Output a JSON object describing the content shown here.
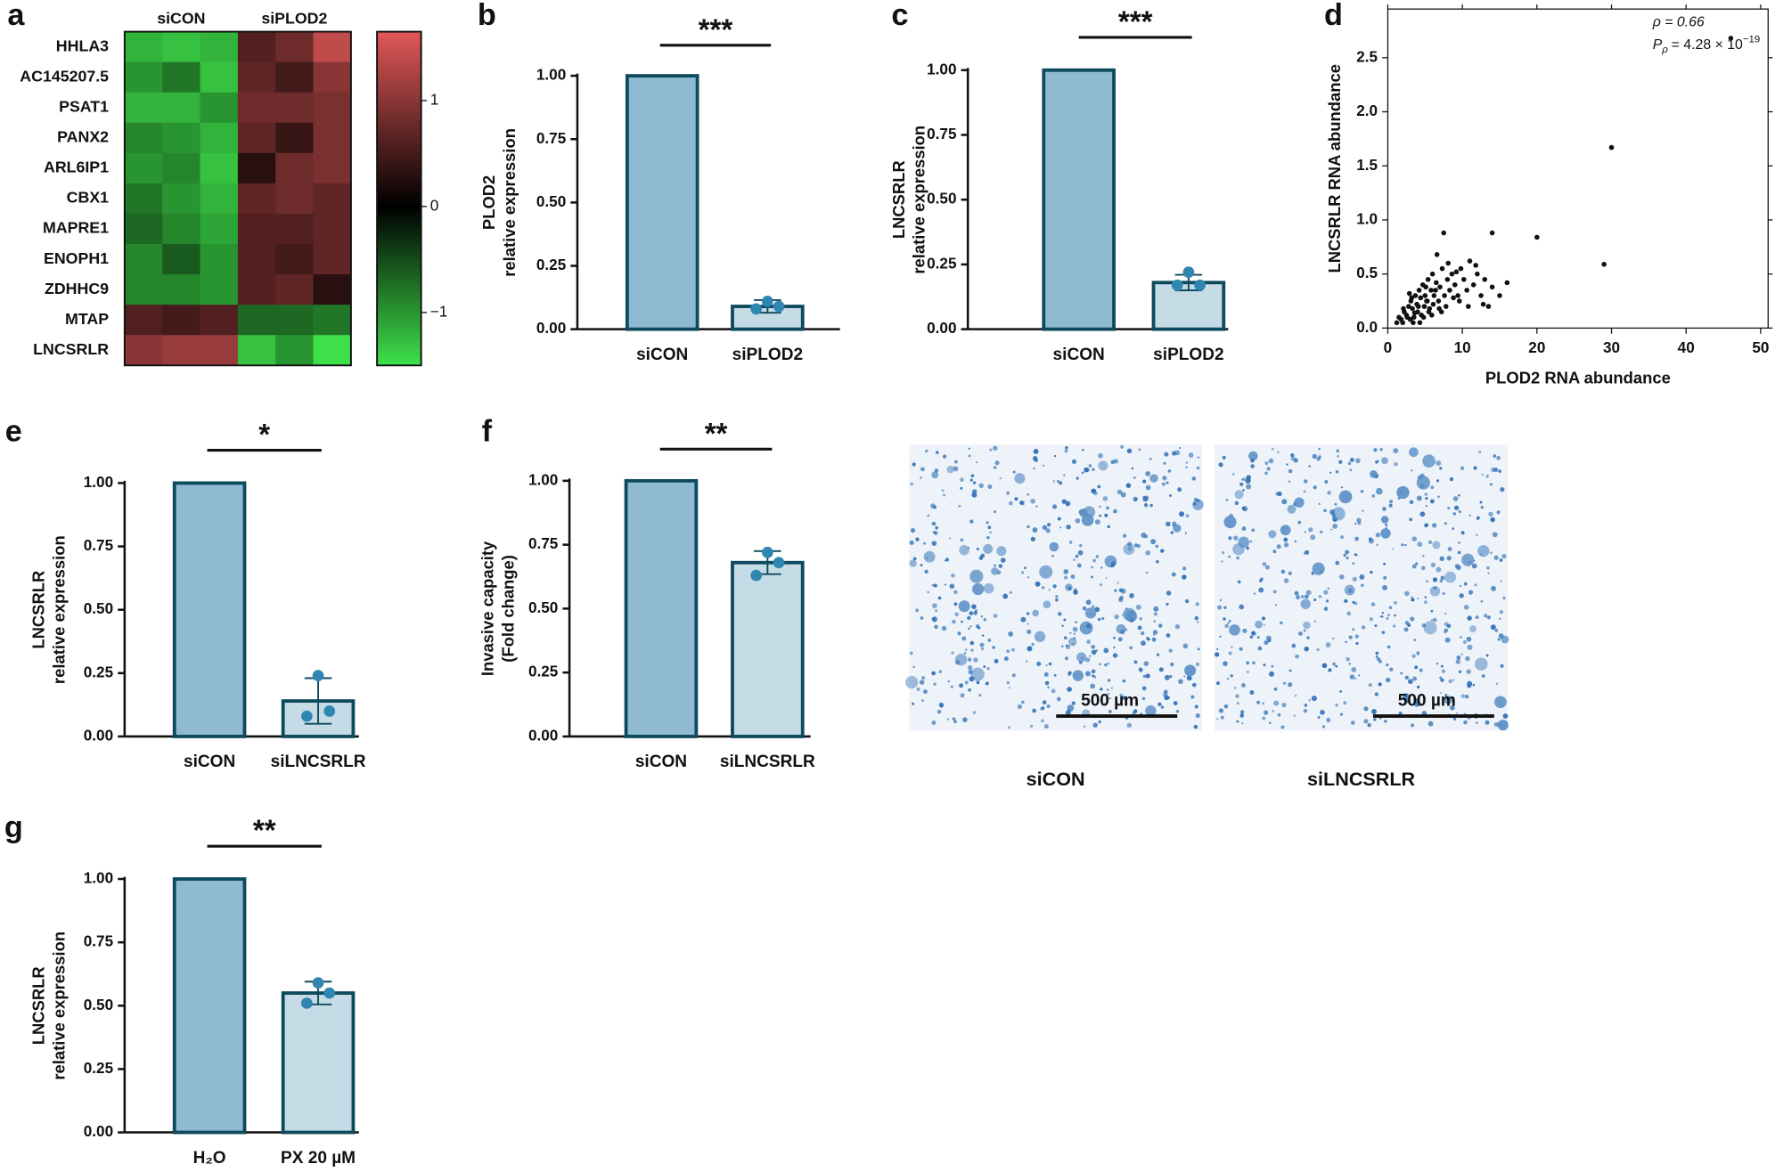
{
  "chart_data": [
    {
      "type": "heatmap",
      "panel": "a",
      "column_groups": [
        "siCON",
        "siPLOD2"
      ],
      "row_labels": [
        "HHLA3",
        "AC145207.5",
        "PSAT1",
        "PANX2",
        "ARL6IP1",
        "CBX1",
        "MAPRE1",
        "ENOPH1",
        "ZDHHC9",
        "MTAP",
        "LNCSRLR"
      ],
      "values": [
        [
          -1.2,
          -1.3,
          -1.2,
          0.6,
          0.8,
          1.4
        ],
        [
          -1.0,
          -0.8,
          -1.3,
          0.7,
          0.5,
          1.0
        ],
        [
          -1.2,
          -1.2,
          -1.0,
          0.8,
          0.8,
          0.9
        ],
        [
          -0.9,
          -1.0,
          -1.2,
          0.7,
          0.4,
          0.9
        ],
        [
          -1.0,
          -0.9,
          -1.3,
          0.3,
          0.8,
          0.9
        ],
        [
          -0.8,
          -1.0,
          -1.2,
          0.7,
          0.8,
          0.7
        ],
        [
          -0.7,
          -0.9,
          -1.1,
          0.6,
          0.6,
          0.7
        ],
        [
          -0.9,
          -0.6,
          -1.0,
          0.6,
          0.5,
          0.7
        ],
        [
          -0.9,
          -0.9,
          -1.0,
          0.6,
          0.7,
          0.3
        ],
        [
          0.6,
          0.5,
          0.6,
          -0.7,
          -0.7,
          -0.8
        ],
        [
          1.0,
          1.1,
          1.1,
          -1.3,
          -1.0,
          -1.5
        ]
      ],
      "clim": [
        -1.5,
        1.65
      ],
      "colorbar_ticks": [
        1,
        0,
        {
          "value": -1,
          "label": "−1"
        }
      ],
      "colors": {
        "low": "#3ee04a",
        "mid": "#000000",
        "high": "#e25858"
      }
    },
    {
      "type": "bar",
      "panel": "b",
      "ylabel": [
        "PLOD2",
        "relative expression"
      ],
      "categories": [
        "siCON",
        "siPLOD2"
      ],
      "values": [
        1.0,
        0.09
      ],
      "errors": [
        null,
        0.025
      ],
      "points": [
        null,
        [
          0.11,
          0.08,
          0.09
        ]
      ],
      "significance": "***",
      "colors": [
        "#8fbad2",
        "#c5dce7"
      ],
      "edge_color": "#0d4a5d",
      "point_color": "#2f86b0",
      "ylim": [
        0,
        1
      ],
      "yticks": [
        {
          "value": 0,
          "label": "0.00"
        },
        0.25,
        {
          "value": 0.5,
          "label": "0.50"
        },
        0.75,
        {
          "value": 1,
          "label": "1.00"
        }
      ]
    },
    {
      "type": "bar",
      "panel": "c",
      "ylabel": [
        "LNCSRLR",
        "relative expression"
      ],
      "categories": [
        "siCON",
        "siPLOD2"
      ],
      "values": [
        1.0,
        0.18
      ],
      "errors": [
        null,
        0.03
      ],
      "points": [
        null,
        [
          0.22,
          0.17,
          0.17
        ]
      ],
      "significance": "***",
      "colors": [
        "#8fbad2",
        "#c5dce7"
      ],
      "edge_color": "#0d4a5d",
      "point_color": "#2f86b0",
      "ylim": [
        0,
        1
      ],
      "yticks": [
        {
          "value": 0,
          "label": "0.00"
        },
        0.25,
        {
          "value": 0.5,
          "label": "0.50"
        },
        0.75,
        {
          "value": 1,
          "label": "1.00"
        }
      ]
    },
    {
      "type": "scatter",
      "panel": "d",
      "xlabel": "PLOD2 RNA abundance",
      "ylabel": "LNCSRLR RNA abundance",
      "annotation": {
        "rho": "ρ = 0.66",
        "p_symbol": "P",
        "p_subscript": "ρ",
        "p_value": "= 4.28 × 10",
        "p_exponent": "−19"
      },
      "color": "#111111",
      "x": [
        1.5,
        2,
        2.2,
        2.5,
        2.8,
        3,
        3.1,
        3.3,
        3.5,
        3.7,
        3.9,
        4,
        4.2,
        4.4,
        4.5,
        4.7,
        4.9,
        5,
        5.2,
        5.4,
        5.6,
        5.8,
        6,
        6.2,
        6.5,
        6.8,
        7,
        7.3,
        7.6,
        8,
        8.3,
        8.6,
        9,
        9.4,
        9.8,
        10.2,
        10.6,
        11,
        11.5,
        12,
        12.5,
        13,
        13.5,
        14,
        15,
        16,
        1.8,
        2.6,
        3.4,
        4.1,
        4.8,
        5.5,
        6.1,
        6.9,
        7.8,
        8.8,
        9.6,
        10.8,
        2.1,
        3.2,
        4.3,
        5.1,
        5.9,
        6.6,
        7.2,
        8.1,
        9.2,
        11.8,
        12.8,
        7.5,
        14,
        20,
        29,
        30,
        46,
        1.2,
        2.9,
        3.6,
        5.3,
        6.4
      ],
      "y": [
        0.1,
        0.05,
        0.15,
        0.12,
        0.2,
        0.08,
        0.25,
        0.18,
        0.1,
        0.3,
        0.22,
        0.15,
        0.35,
        0.28,
        0.12,
        0.4,
        0.2,
        0.3,
        0.25,
        0.45,
        0.18,
        0.35,
        0.5,
        0.3,
        0.42,
        0.25,
        0.38,
        0.55,
        0.3,
        0.45,
        0.35,
        0.5,
        0.4,
        0.3,
        0.55,
        0.45,
        0.35,
        0.62,
        0.4,
        0.5,
        0.3,
        0.45,
        0.2,
        0.38,
        0.3,
        0.42,
        0.08,
        0.1,
        0.05,
        0.2,
        0.1,
        0.15,
        0.22,
        0.18,
        0.2,
        0.28,
        0.25,
        0.2,
        0.18,
        0.28,
        0.05,
        0.38,
        0.12,
        0.68,
        0.15,
        0.6,
        0.52,
        0.58,
        0.22,
        0.88,
        0.88,
        0.84,
        0.59,
        1.67,
        2.68,
        0.05,
        0.32,
        0.14,
        0.25,
        0.35
      ],
      "xlim": [
        0,
        51
      ],
      "xticks": [
        0,
        10,
        20,
        30,
        40,
        50
      ],
      "ylim": [
        0,
        2.95
      ],
      "yticks": [
        {
          "value": 0,
          "label": "0.0"
        },
        0.5,
        {
          "value": 1,
          "label": "1.0"
        },
        1.5,
        {
          "value": 2,
          "label": "2.0"
        },
        2.5
      ]
    },
    {
      "type": "bar",
      "panel": "e",
      "ylabel": [
        "LNCSRLR",
        "relative expression"
      ],
      "categories": [
        "siCON",
        "siLNCSRLR"
      ],
      "values": [
        1.0,
        0.14
      ],
      "errors": [
        null,
        0.09
      ],
      "points": [
        null,
        [
          0.24,
          0.08,
          0.1
        ]
      ],
      "significance": "*",
      "colors": [
        "#8fbad2",
        "#c5dce7"
      ],
      "edge_color": "#0d4a5d",
      "point_color": "#2f86b0",
      "ylim": [
        0,
        1
      ],
      "yticks": [
        {
          "value": 0,
          "label": "0.00"
        },
        0.25,
        {
          "value": 0.5,
          "label": "0.50"
        },
        0.75,
        {
          "value": 1,
          "label": "1.00"
        }
      ]
    },
    {
      "type": "bar",
      "panel": "f",
      "ylabel": [
        "Invasive capacity",
        "(Fold change)"
      ],
      "categories": [
        "siCON",
        "siLNCSRLR"
      ],
      "values": [
        1.0,
        0.68
      ],
      "errors": [
        null,
        0.045
      ],
      "points": [
        null,
        [
          0.72,
          0.63,
          0.68
        ]
      ],
      "significance": "**",
      "colors": [
        "#8fbad2",
        "#c5dce7"
      ],
      "edge_color": "#0d4a5d",
      "point_color": "#2f86b0",
      "ylim": [
        0,
        1
      ],
      "yticks": [
        {
          "value": 0,
          "label": "0.00"
        },
        0.25,
        {
          "value": 0.5,
          "label": "0.50"
        },
        0.75,
        {
          "value": 1,
          "label": "1.00"
        }
      ]
    },
    {
      "type": "bar",
      "panel": "g",
      "ylabel": [
        "LNCSRLR",
        "relative expression"
      ],
      "categories": [
        "H₂O",
        "PX 20 µM"
      ],
      "values": [
        1.0,
        0.55
      ],
      "errors": [
        null,
        0.045
      ],
      "points": [
        null,
        [
          0.59,
          0.51,
          0.55
        ]
      ],
      "significance": "**",
      "colors": [
        "#8fbad2",
        "#c5dce7"
      ],
      "edge_color": "#0d4a5d",
      "point_color": "#2f86b0",
      "ylim": [
        0,
        1
      ],
      "yticks": [
        {
          "value": 0,
          "label": "0.00"
        },
        0.25,
        {
          "value": 0.5,
          "label": "0.50"
        },
        0.75,
        {
          "value": 1,
          "label": "1.00"
        }
      ]
    }
  ],
  "images": [
    {
      "label": "siCON",
      "scale_bar": "500 µm"
    },
    {
      "label": "siLNCSRLR",
      "scale_bar": "500 µm"
    }
  ]
}
